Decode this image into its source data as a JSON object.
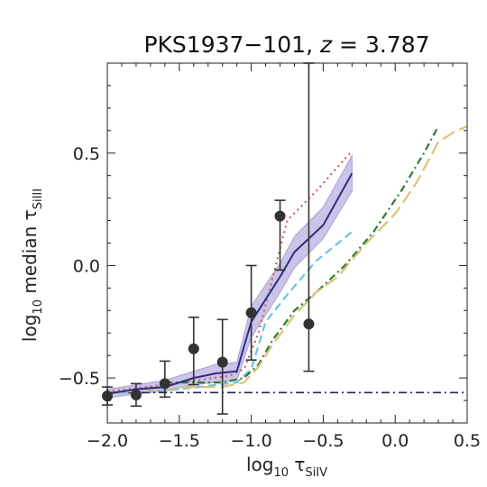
{
  "chart_data": {
    "type": "line",
    "title": "PKS1937−101, z = 3.787",
    "title_parts": {
      "name": "PKS1937−101, ",
      "z_symbol": "z",
      "z_value": " = 3.787"
    },
    "xlabel": "log10 τSiIV",
    "xlabel_parts": {
      "pre": "log",
      "sub": "10",
      "sym": " τ",
      "symsub": "SiIV"
    },
    "ylabel": "log10 median τSiIII",
    "ylabel_parts": {
      "pre": "log",
      "sub": "10",
      "mid": " median τ",
      "symsub": "SiIII"
    },
    "xlim": [
      -2.0,
      0.5
    ],
    "ylim": [
      -0.7,
      0.9
    ],
    "x_ticks": [
      -2.0,
      -1.5,
      -1.0,
      -0.5,
      0.0,
      0.5
    ],
    "x_tick_labels": [
      "−2.0",
      "−1.5",
      "−1.0",
      "−0.5",
      "0.0",
      "0.5"
    ],
    "y_ticks": [
      -0.5,
      0.0,
      0.5
    ],
    "y_tick_labels": [
      "−0.5",
      "0.0",
      "0.5"
    ],
    "grid": false,
    "colors": {
      "main": "#2e2a8a",
      "band": "#7b6fc0",
      "red_dotted": "#c4645e",
      "cyan_dashed": "#6ec2e3",
      "green_dashdot": "#2e7d32",
      "yellow_dashed": "#dcc277",
      "baseline": "#24244f",
      "points": "#333333"
    },
    "series": [
      {
        "key": "red_dotted",
        "style": "dotted",
        "x": [
          -2.0,
          -1.6,
          -1.15,
          -1.05,
          -0.95,
          -0.85,
          -0.75,
          -0.55,
          -0.3
        ],
        "y": [
          -0.56,
          -0.53,
          -0.49,
          -0.46,
          -0.3,
          -0.05,
          0.2,
          0.33,
          0.51
        ]
      },
      {
        "key": "cyan_dashed",
        "style": "dashed",
        "x": [
          -2.0,
          -1.5,
          -1.1,
          -1.0,
          -0.9,
          -0.75,
          -0.55,
          -0.3
        ],
        "y": [
          -0.57,
          -0.55,
          -0.52,
          -0.46,
          -0.25,
          -0.13,
          0.02,
          0.15
        ]
      },
      {
        "key": "green_dashdot",
        "style": "dashdot",
        "x": [
          -1.6,
          -1.2,
          -1.05,
          -0.95,
          -0.85,
          -0.7,
          -0.55,
          -0.35,
          -0.15,
          0.05,
          0.2,
          0.3
        ],
        "y": [
          -0.52,
          -0.52,
          -0.5,
          -0.44,
          -0.33,
          -0.2,
          -0.12,
          0.0,
          0.15,
          0.34,
          0.5,
          0.62
        ]
      },
      {
        "key": "yellow_dashed",
        "style": "longdash",
        "x": [
          -2.0,
          -1.7,
          -1.4,
          -1.2,
          -1.05,
          -0.95,
          -0.85,
          -0.7,
          -0.55,
          -0.4,
          -0.2,
          0.0,
          0.15,
          0.3,
          0.4,
          0.5
        ],
        "y": [
          -0.57,
          -0.55,
          -0.54,
          -0.54,
          -0.52,
          -0.45,
          -0.35,
          -0.22,
          -0.12,
          -0.05,
          0.1,
          0.23,
          0.37,
          0.55,
          0.59,
          0.62
        ]
      },
      {
        "key": "main",
        "style": "solid",
        "x": [
          -2.0,
          -1.8,
          -1.6,
          -1.4,
          -1.25,
          -1.1,
          -1.0,
          -0.8,
          -0.7,
          -0.5,
          -0.3
        ],
        "y": [
          -0.57,
          -0.55,
          -0.54,
          -0.5,
          -0.48,
          -0.47,
          -0.25,
          -0.05,
          0.06,
          0.18,
          0.41
        ]
      }
    ],
    "band": {
      "x": [
        -2.0,
        -1.8,
        -1.6,
        -1.4,
        -1.25,
        -1.1,
        -1.0,
        -0.8,
        -0.7,
        -0.5,
        -0.3
      ],
      "low": [
        -0.59,
        -0.57,
        -0.56,
        -0.53,
        -0.52,
        -0.51,
        -0.32,
        -0.12,
        -0.01,
        0.12,
        0.33
      ],
      "high": [
        -0.55,
        -0.53,
        -0.51,
        -0.47,
        -0.44,
        -0.43,
        -0.18,
        0.01,
        0.13,
        0.26,
        0.49
      ]
    },
    "baseline": {
      "y": -0.565,
      "style": "dashdot"
    },
    "points": [
      {
        "x": -2.0,
        "y": -0.58,
        "err_low": 0.04,
        "err_high": 0.04
      },
      {
        "x": -1.8,
        "y": -0.575,
        "err_low": 0.05,
        "err_high": 0.05
      },
      {
        "x": -1.6,
        "y": -0.525,
        "err_low": 0.06,
        "err_high": 0.1
      },
      {
        "x": -1.4,
        "y": -0.37,
        "err_low": 0.16,
        "err_high": 0.14
      },
      {
        "x": -1.2,
        "y": -0.43,
        "err_low": 0.23,
        "err_high": 0.19
      },
      {
        "x": -1.0,
        "y": -0.21,
        "err_low": 0.21,
        "err_high": 0.21
      },
      {
        "x": -0.8,
        "y": 0.22,
        "err_low": 0.24,
        "err_high": 0.07
      },
      {
        "x": -0.6,
        "y": -0.26,
        "err_low": 0.21,
        "err_high": 1.16
      }
    ]
  }
}
